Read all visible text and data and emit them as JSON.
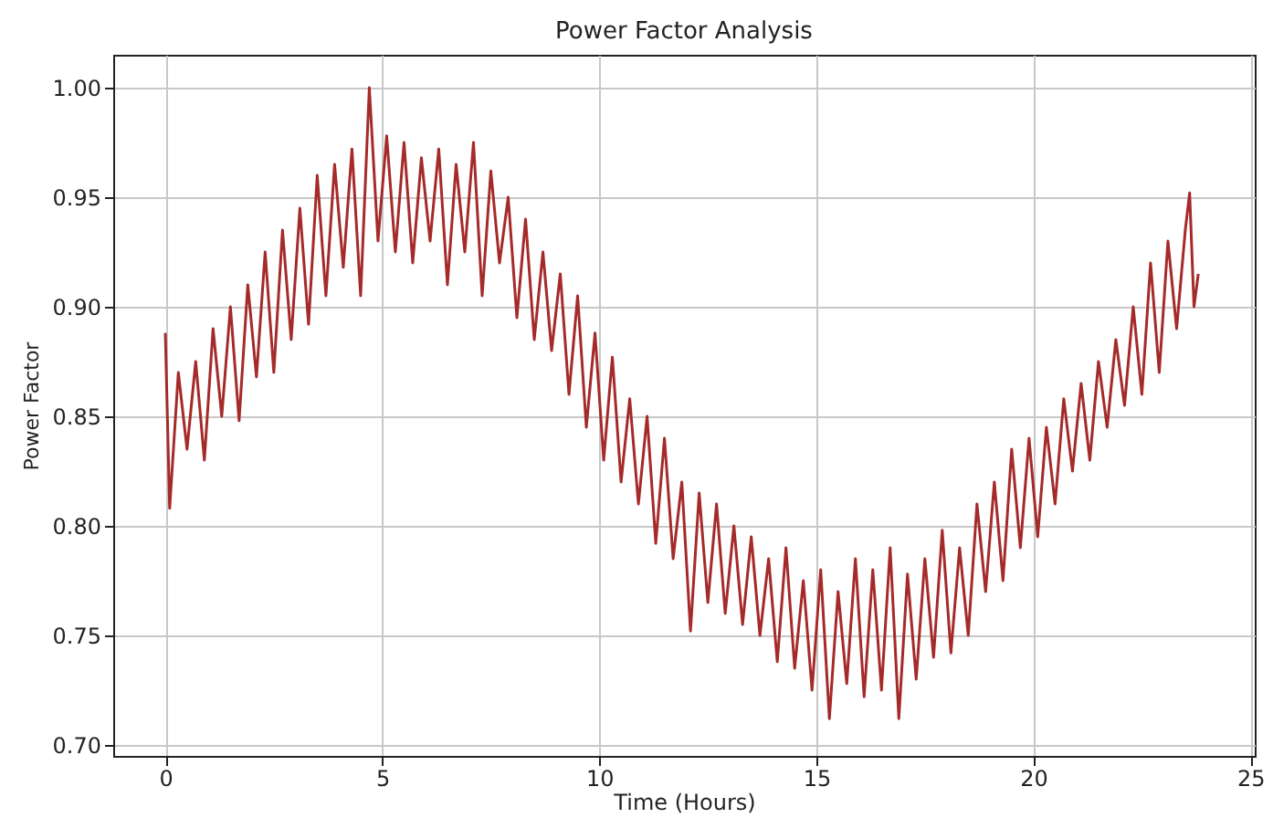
{
  "chart_data": {
    "type": "line",
    "title": "Power Factor Analysis",
    "xlabel": "Time (Hours)",
    "ylabel": "Power Factor",
    "xlim": [
      -1.2,
      25.1
    ],
    "xticks": [
      0,
      5,
      10,
      15,
      20,
      25
    ],
    "ylim": [
      0.695,
      1.015
    ],
    "yticks": [
      {
        "value": 0.7,
        "label": "0.70"
      },
      {
        "value": 0.75,
        "label": "0.75"
      },
      {
        "value": 0.8,
        "label": "0.80"
      },
      {
        "value": 0.85,
        "label": "0.85"
      },
      {
        "value": 0.9,
        "label": "0.90"
      },
      {
        "value": 0.95,
        "label": "0.95"
      },
      {
        "value": 1.0,
        "label": "1.00"
      }
    ],
    "grid": true,
    "line_style": "solid",
    "series": [
      {
        "color": "#a52a2a",
        "x": [
          0,
          0.1,
          0.3,
          0.5,
          0.7,
          0.9,
          1.1,
          1.3,
          1.5,
          1.7,
          1.9,
          2.1,
          2.3,
          2.5,
          2.7,
          2.9,
          3.1,
          3.3,
          3.5,
          3.7,
          3.9,
          4.1,
          4.3,
          4.5,
          4.7,
          4.9,
          5.1,
          5.3,
          5.5,
          5.7,
          5.9,
          6.1,
          6.3,
          6.5,
          6.7,
          6.9,
          7.1,
          7.3,
          7.5,
          7.7,
          7.9,
          8.1,
          8.3,
          8.5,
          8.7,
          8.9,
          9.1,
          9.3,
          9.5,
          9.7,
          9.9,
          10.1,
          10.3,
          10.5,
          10.7,
          10.9,
          11.1,
          11.3,
          11.5,
          11.7,
          11.9,
          12.1,
          12.3,
          12.5,
          12.7,
          12.9,
          13.1,
          13.3,
          13.5,
          13.7,
          13.9,
          14.1,
          14.3,
          14.5,
          14.7,
          14.9,
          15.1,
          15.3,
          15.5,
          15.7,
          15.9,
          16.1,
          16.3,
          16.5,
          16.7,
          16.9,
          17.1,
          17.3,
          17.5,
          17.7,
          17.9,
          18.1,
          18.3,
          18.5,
          18.7,
          18.9,
          19.1,
          19.3,
          19.5,
          19.7,
          19.9,
          20.1,
          20.3,
          20.5,
          20.7,
          20.9,
          21.1,
          21.3,
          21.5,
          21.7,
          21.9,
          22.1,
          22.3,
          22.5,
          22.7,
          22.9,
          23.1,
          23.3,
          23.5,
          23.6,
          23.7,
          23.8
        ],
        "values": [
          0.888,
          0.808,
          0.87,
          0.835,
          0.875,
          0.83,
          0.89,
          0.85,
          0.9,
          0.848,
          0.91,
          0.868,
          0.925,
          0.87,
          0.935,
          0.885,
          0.945,
          0.892,
          0.96,
          0.905,
          0.965,
          0.918,
          0.972,
          0.905,
          1.0,
          0.93,
          0.978,
          0.925,
          0.975,
          0.92,
          0.968,
          0.93,
          0.972,
          0.91,
          0.965,
          0.925,
          0.975,
          0.905,
          0.962,
          0.92,
          0.95,
          0.895,
          0.94,
          0.885,
          0.925,
          0.88,
          0.915,
          0.86,
          0.905,
          0.845,
          0.888,
          0.83,
          0.877,
          0.82,
          0.858,
          0.81,
          0.85,
          0.792,
          0.84,
          0.785,
          0.82,
          0.752,
          0.815,
          0.765,
          0.81,
          0.76,
          0.8,
          0.755,
          0.795,
          0.75,
          0.785,
          0.738,
          0.79,
          0.735,
          0.775,
          0.725,
          0.78,
          0.712,
          0.77,
          0.728,
          0.785,
          0.722,
          0.78,
          0.725,
          0.79,
          0.712,
          0.778,
          0.73,
          0.785,
          0.74,
          0.798,
          0.742,
          0.79,
          0.75,
          0.81,
          0.77,
          0.82,
          0.775,
          0.835,
          0.79,
          0.84,
          0.795,
          0.845,
          0.81,
          0.858,
          0.825,
          0.865,
          0.83,
          0.875,
          0.845,
          0.885,
          0.855,
          0.9,
          0.86,
          0.92,
          0.87,
          0.93,
          0.89,
          0.935,
          0.952,
          0.9,
          0.915
        ]
      }
    ]
  }
}
